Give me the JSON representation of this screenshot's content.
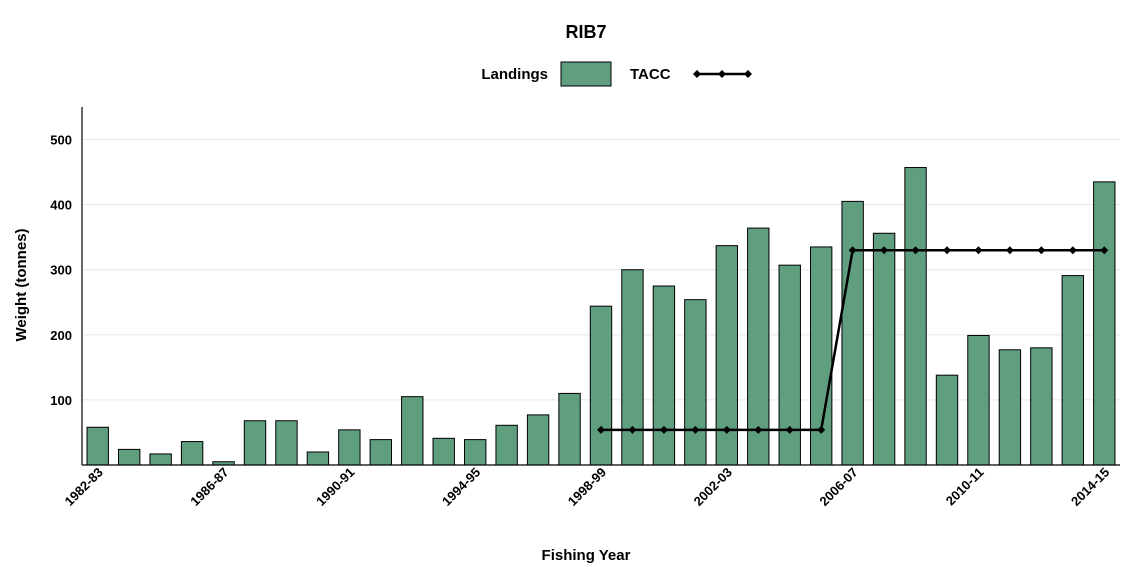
{
  "chart_data": {
    "type": "bar",
    "title": "RIB7",
    "xlabel": "Fishing Year",
    "ylabel": "Weight (tonnes)",
    "ylim": [
      0,
      550
    ],
    "yticks": [
      100,
      200,
      300,
      400,
      500
    ],
    "grid": true,
    "legend_position": "top-center",
    "categories": [
      "1982-83",
      "1983-84",
      "1984-85",
      "1985-86",
      "1986-87",
      "1987-88",
      "1988-89",
      "1989-90",
      "1990-91",
      "1991-92",
      "1992-93",
      "1993-94",
      "1994-95",
      "1995-96",
      "1996-97",
      "1997-98",
      "1998-99",
      "1999-00",
      "2000-01",
      "2001-02",
      "2002-03",
      "2003-04",
      "2004-05",
      "2005-06",
      "2006-07",
      "2007-08",
      "2008-09",
      "2009-10",
      "2010-11",
      "2011-12",
      "2012-13",
      "2013-14",
      "2014-15"
    ],
    "x_tick_labels": [
      "1982-83",
      "1986-87",
      "1990-91",
      "1994-95",
      "1998-99",
      "2002-03",
      "2006-07",
      "2010-11",
      "2014-15"
    ],
    "series": [
      {
        "name": "Landings",
        "kind": "bar",
        "color": "#5f9e7f",
        "values": [
          58,
          24,
          17,
          36,
          5,
          68,
          68,
          20,
          54,
          39,
          105,
          41,
          39,
          61,
          77,
          110,
          244,
          300,
          275,
          254,
          337,
          364,
          307,
          335,
          405,
          356,
          457,
          138,
          199,
          177,
          180,
          291,
          435
        ]
      },
      {
        "name": "TACC",
        "kind": "line",
        "color": "#000000",
        "values": [
          null,
          null,
          null,
          null,
          null,
          null,
          null,
          null,
          null,
          null,
          null,
          null,
          null,
          null,
          null,
          null,
          54,
          54,
          54,
          54,
          54,
          54,
          54,
          54,
          330,
          330,
          330,
          330,
          330,
          330,
          330,
          330,
          330
        ]
      }
    ]
  }
}
